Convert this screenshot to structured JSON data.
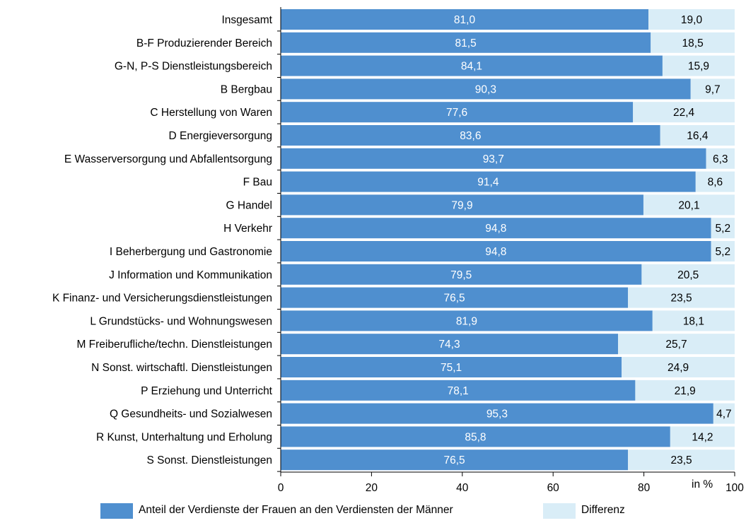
{
  "chart_data": {
    "type": "bar",
    "orientation": "horizontal",
    "stacked": true,
    "categories": [
      "Insgesamt",
      "B-F Produzierender Bereich",
      "G-N, P-S Dienstleistungsbereich",
      "B Bergbau",
      "C Herstellung von Waren",
      "D Energieversorgung",
      "E Wasserversorgung und Abfallentsorgung",
      "F Bau",
      "G Handel",
      "H Verkehr",
      "I Beherbergung und Gastronomie",
      "J Information und Kommunikation",
      "K Finanz- und Versicherungsdienstleistungen",
      "L Grundstücks- und Wohnungswesen",
      "M Freiberufliche/techn. Dienstleistungen",
      "N Sonst. wirtschaftl. Dienstleistungen",
      "P Erziehung und Unterricht",
      "Q Gesundheits- und Sozialwesen",
      "R Kunst, Unterhaltung und Erholung",
      "S Sonst. Dienstleistungen"
    ],
    "series": [
      {
        "name": "Anteil der Verdienste der Frauen an den Verdiensten der Männer",
        "color": "#4f8fcf",
        "values": [
          81.0,
          81.5,
          84.1,
          90.3,
          77.6,
          83.6,
          93.7,
          91.4,
          79.9,
          94.8,
          94.8,
          79.5,
          76.5,
          81.9,
          74.3,
          75.1,
          78.1,
          95.3,
          85.8,
          76.5
        ],
        "labels": [
          "81,0",
          "81,5",
          "84,1",
          "90,3",
          "77,6",
          "83,6",
          "93,7",
          "91,4",
          "79,9",
          "94,8",
          "94,8",
          "79,5",
          "76,5",
          "81,9",
          "74,3",
          "75,1",
          "78,1",
          "95,3",
          "85,8",
          "76,5"
        ]
      },
      {
        "name": "Differenz",
        "color": "#d9edf7",
        "values": [
          19.0,
          18.5,
          15.9,
          9.7,
          22.4,
          16.4,
          6.3,
          8.6,
          20.1,
          5.2,
          5.2,
          20.5,
          23.5,
          18.1,
          25.7,
          24.9,
          21.9,
          4.7,
          14.2,
          23.5
        ],
        "labels": [
          "19,0",
          "18,5",
          "15,9",
          "9,7",
          "22,4",
          "16,4",
          "6,3",
          "8,6",
          "20,1",
          "5,2",
          "5,2",
          "20,5",
          "23,5",
          "18,1",
          "25,7",
          "24,9",
          "21,9",
          "4,7",
          "14,2",
          "23,5"
        ]
      }
    ],
    "xlim": [
      0,
      100
    ],
    "xticks": [
      0,
      20,
      40,
      60,
      80,
      100
    ],
    "xtick_labels": [
      "0",
      "20",
      "40",
      "60",
      "80",
      "100"
    ],
    "xlabel": "in %",
    "legend_position": "bottom",
    "grid": false
  }
}
